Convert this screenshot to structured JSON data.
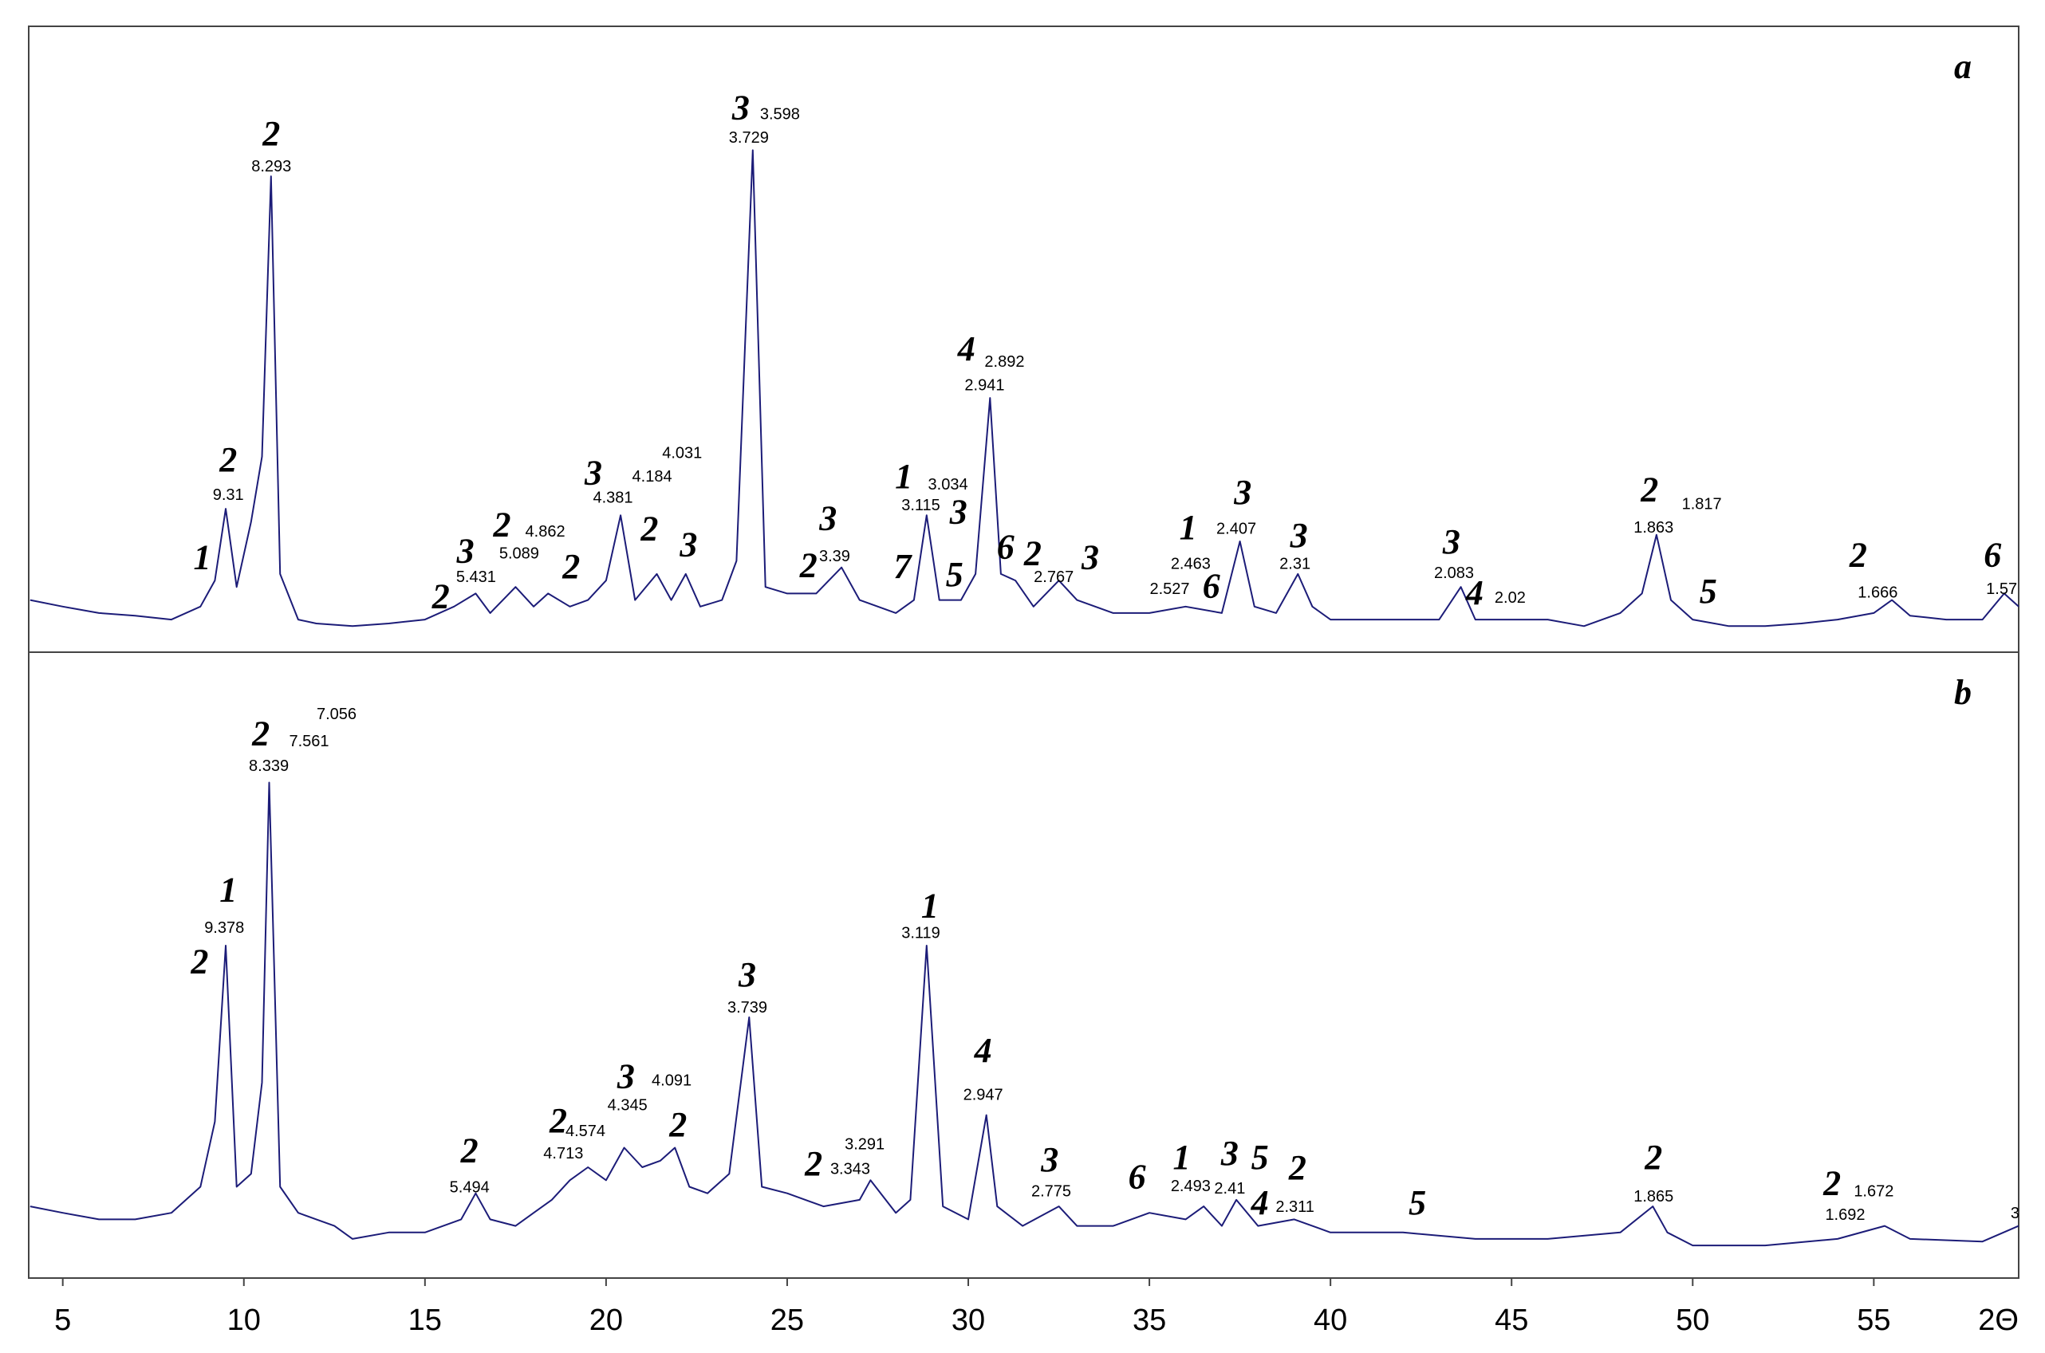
{
  "chart_data": [
    {
      "type": "line",
      "panel_label": "a",
      "color": "#1c1c78",
      "xlim": [
        4.06,
        59.0
      ],
      "ylim": [
        0,
        480
      ],
      "x": [
        4.1,
        5,
        6,
        7,
        8,
        8.8,
        9.2,
        9.5,
        9.8,
        10.2,
        10.5,
        10.75,
        11.0,
        11.5,
        12,
        13,
        14,
        15,
        15.8,
        16.4,
        16.8,
        17.5,
        18,
        18.4,
        19,
        19.5,
        20,
        20.4,
        20.8,
        21.4,
        21.8,
        22.2,
        22.6,
        23.2,
        23.6,
        24.05,
        24.4,
        25,
        25.8,
        26.5,
        27,
        28,
        28.5,
        28.85,
        29.2,
        29.8,
        30.2,
        30.6,
        30.9,
        31.3,
        31.8,
        32.5,
        33,
        34,
        35,
        36,
        37,
        37.5,
        37.9,
        38.5,
        39.1,
        39.5,
        40,
        42,
        43,
        43.6,
        44,
        45,
        46,
        47,
        48,
        48.6,
        49.0,
        49.4,
        50,
        51,
        52,
        53,
        54,
        55,
        55.5,
        56,
        57,
        58,
        58.6,
        59
      ],
      "values": [
        40,
        35,
        30,
        28,
        25,
        35,
        55,
        110,
        50,
        100,
        150,
        365,
        60,
        25,
        22,
        20,
        22,
        25,
        35,
        45,
        30,
        50,
        35,
        45,
        35,
        40,
        55,
        105,
        40,
        60,
        40,
        60,
        35,
        40,
        70,
        385,
        50,
        45,
        45,
        65,
        40,
        30,
        40,
        105,
        40,
        40,
        60,
        195,
        60,
        55,
        35,
        55,
        40,
        30,
        30,
        35,
        30,
        85,
        35,
        30,
        60,
        35,
        25,
        25,
        25,
        50,
        25,
        25,
        25,
        20,
        30,
        45,
        90,
        40,
        25,
        20,
        20,
        22,
        25,
        30,
        40,
        28,
        25,
        25,
        45,
        35
      ],
      "annotations": [
        {
          "text": "1",
          "style": "phase",
          "x": 8.85,
          "y": 70
        },
        {
          "text": "2",
          "style": "phase",
          "x": 9.57,
          "y": 145
        },
        {
          "text": "9.31",
          "style": "d",
          "x": 9.57,
          "y": 120
        },
        {
          "text": "2",
          "style": "phase",
          "x": 10.76,
          "y": 395
        },
        {
          "text": "8.293",
          "style": "d",
          "x": 10.76,
          "y": 372
        },
        {
          "text": "2",
          "style": "phase",
          "x": 15.44,
          "y": 40
        },
        {
          "text": "3",
          "style": "phase",
          "x": 16.12,
          "y": 75
        },
        {
          "text": "5.431",
          "style": "d",
          "x": 16.41,
          "y": 57
        },
        {
          "text": "2",
          "style": "phase",
          "x": 17.13,
          "y": 95
        },
        {
          "text": "5.089",
          "style": "d",
          "x": 17.6,
          "y": 75
        },
        {
          "text": "4.862",
          "style": "d",
          "x": 18.32,
          "y": 92
        },
        {
          "text": "2",
          "style": "phase",
          "x": 19.04,
          "y": 63
        },
        {
          "text": "3",
          "style": "phase",
          "x": 19.65,
          "y": 135
        },
        {
          "text": "4.381",
          "style": "d",
          "x": 20.19,
          "y": 118
        },
        {
          "text": "4.184",
          "style": "d",
          "x": 21.27,
          "y": 134
        },
        {
          "text": "4.031",
          "style": "d",
          "x": 22.1,
          "y": 152
        },
        {
          "text": "2",
          "style": "phase",
          "x": 21.2,
          "y": 92
        },
        {
          "text": "3",
          "style": "phase",
          "x": 22.28,
          "y": 80
        },
        {
          "text": "3",
          "style": "phase",
          "x": 23.72,
          "y": 415
        },
        {
          "text": "3.598",
          "style": "d",
          "x": 24.8,
          "y": 412
        },
        {
          "text": "3.729",
          "style": "d",
          "x": 23.94,
          "y": 394
        },
        {
          "text": "2",
          "style": "phase",
          "x": 25.59,
          "y": 64
        },
        {
          "text": "3.39",
          "style": "d",
          "x": 26.31,
          "y": 73
        },
        {
          "text": "3",
          "style": "phase",
          "x": 26.13,
          "y": 100
        },
        {
          "text": "1",
          "style": "phase",
          "x": 28.22,
          "y": 132
        },
        {
          "text": "3.034",
          "style": "d",
          "x": 29.44,
          "y": 128
        },
        {
          "text": "3.115",
          "style": "d",
          "x": 28.69,
          "y": 112
        },
        {
          "text": "3",
          "style": "phase",
          "x": 29.73,
          "y": 105
        },
        {
          "text": "7",
          "style": "phase",
          "x": 28.18,
          "y": 63
        },
        {
          "text": "5",
          "style": "phase",
          "x": 29.62,
          "y": 57
        },
        {
          "text": "4",
          "style": "phase",
          "x": 29.95,
          "y": 230
        },
        {
          "text": "2.892",
          "style": "d",
          "x": 31.0,
          "y": 222
        },
        {
          "text": "2.941",
          "style": "d",
          "x": 30.45,
          "y": 204
        },
        {
          "text": "6",
          "style": "phase",
          "x": 31.03,
          "y": 78
        },
        {
          "text": "2",
          "style": "phase",
          "x": 31.78,
          "y": 73
        },
        {
          "text": "2.767",
          "style": "d",
          "x": 32.36,
          "y": 57
        },
        {
          "text": "3",
          "style": "phase",
          "x": 33.37,
          "y": 70
        },
        {
          "text": "1",
          "style": "phase",
          "x": 36.07,
          "y": 93
        },
        {
          "text": "2.463",
          "style": "d",
          "x": 36.14,
          "y": 67
        },
        {
          "text": "2.527",
          "style": "d",
          "x": 35.56,
          "y": 48
        },
        {
          "text": "6",
          "style": "phase",
          "x": 36.71,
          "y": 48
        },
        {
          "text": "3",
          "style": "phase",
          "x": 37.58,
          "y": 120
        },
        {
          "text": "2.407",
          "style": "d",
          "x": 37.4,
          "y": 94
        },
        {
          "text": "3",
          "style": "phase",
          "x": 39.13,
          "y": 87
        },
        {
          "text": "2.31",
          "style": "d",
          "x": 39.02,
          "y": 67
        },
        {
          "text": "3",
          "style": "phase",
          "x": 43.34,
          "y": 82
        },
        {
          "text": "2.083",
          "style": "d",
          "x": 43.41,
          "y": 60
        },
        {
          "text": "4",
          "style": "phase",
          "x": 43.98,
          "y": 43
        },
        {
          "text": "2.02",
          "style": "d",
          "x": 44.96,
          "y": 41
        },
        {
          "text": "2",
          "style": "phase",
          "x": 48.81,
          "y": 122
        },
        {
          "text": "1.863",
          "style": "d",
          "x": 48.92,
          "y": 95
        },
        {
          "text": "1.817",
          "style": "d",
          "x": 50.25,
          "y": 113
        },
        {
          "text": "5",
          "style": "phase",
          "x": 50.43,
          "y": 44
        },
        {
          "text": "2",
          "style": "phase",
          "x": 54.57,
          "y": 72
        },
        {
          "text": "1.666",
          "style": "d",
          "x": 55.11,
          "y": 45
        },
        {
          "text": "6",
          "style": "phase",
          "x": 58.28,
          "y": 72
        },
        {
          "text": "1.57",
          "style": "d",
          "x": 58.53,
          "y": 48
        }
      ]
    },
    {
      "type": "line",
      "panel_label": "b",
      "color": "#1c1c78",
      "xlim": [
        4.06,
        59.0
      ],
      "ylim": [
        0,
        480
      ],
      "xticks": [
        5,
        10,
        15,
        20,
        25,
        30,
        35,
        40,
        45,
        50,
        55
      ],
      "xlabel": "2Θ",
      "x": [
        4.1,
        5,
        6,
        7,
        8,
        8.8,
        9.2,
        9.5,
        9.8,
        10.2,
        10.5,
        10.7,
        11.0,
        11.5,
        12,
        12.5,
        13,
        14,
        15,
        16,
        16.4,
        16.8,
        17.5,
        18,
        18.5,
        19,
        19.5,
        20,
        20.5,
        21,
        21.5,
        21.9,
        22.3,
        22.8,
        23.4,
        23.95,
        24.3,
        25,
        26,
        27,
        27.3,
        28,
        28.4,
        28.85,
        29.3,
        30,
        30.5,
        30.8,
        31.5,
        32.5,
        33,
        34,
        35,
        36,
        36.5,
        37,
        37.4,
        38,
        39,
        40,
        42,
        44,
        46,
        48,
        48.9,
        49.3,
        50,
        52,
        54,
        55.3,
        56,
        58,
        59
      ],
      "values": [
        55,
        50,
        45,
        45,
        50,
        70,
        120,
        255,
        70,
        80,
        150,
        380,
        70,
        50,
        45,
        40,
        30,
        35,
        35,
        45,
        65,
        45,
        40,
        50,
        60,
        75,
        85,
        75,
        100,
        85,
        90,
        100,
        70,
        65,
        80,
        200,
        70,
        65,
        55,
        60,
        75,
        50,
        60,
        255,
        55,
        45,
        125,
        55,
        40,
        55,
        40,
        40,
        50,
        45,
        55,
        40,
        60,
        40,
        45,
        35,
        35,
        30,
        30,
        35,
        55,
        35,
        25,
        25,
        30,
        40,
        30,
        28,
        40
      ],
      "annotations": [
        {
          "text": "2",
          "style": "phase",
          "x": 8.78,
          "y": 240
        },
        {
          "text": "1",
          "style": "phase",
          "x": 9.57,
          "y": 295
        },
        {
          "text": "9.378",
          "style": "d",
          "x": 9.46,
          "y": 268
        },
        {
          "text": "2",
          "style": "phase",
          "x": 10.47,
          "y": 415
        },
        {
          "text": "7.561",
          "style": "d",
          "x": 11.8,
          "y": 411
        },
        {
          "text": "7.056",
          "style": "d",
          "x": 12.56,
          "y": 432
        },
        {
          "text": "8.339",
          "style": "d",
          "x": 10.69,
          "y": 392
        },
        {
          "text": "2",
          "style": "phase",
          "x": 16.23,
          "y": 95
        },
        {
          "text": "5.494",
          "style": "d",
          "x": 16.23,
          "y": 69
        },
        {
          "text": "2",
          "style": "phase",
          "x": 18.68,
          "y": 118
        },
        {
          "text": "4.574",
          "style": "d",
          "x": 19.43,
          "y": 112
        },
        {
          "text": "4.713",
          "style": "d",
          "x": 18.82,
          "y": 95
        },
        {
          "text": "3",
          "style": "phase",
          "x": 20.55,
          "y": 152
        },
        {
          "text": "4.091",
          "style": "d",
          "x": 21.81,
          "y": 151
        },
        {
          "text": "4.345",
          "style": "d",
          "x": 20.59,
          "y": 132
        },
        {
          "text": "2",
          "style": "phase",
          "x": 21.99,
          "y": 115
        },
        {
          "text": "3",
          "style": "phase",
          "x": 23.9,
          "y": 230
        },
        {
          "text": "3.739",
          "style": "d",
          "x": 23.9,
          "y": 207
        },
        {
          "text": "2",
          "style": "phase",
          "x": 25.73,
          "y": 85
        },
        {
          "text": "3.343",
          "style": "d",
          "x": 26.74,
          "y": 83
        },
        {
          "text": "3.291",
          "style": "d",
          "x": 27.14,
          "y": 102
        },
        {
          "text": "1",
          "style": "phase",
          "x": 28.94,
          "y": 283
        },
        {
          "text": "3.119",
          "style": "d",
          "x": 28.69,
          "y": 264
        },
        {
          "text": "4",
          "style": "phase",
          "x": 30.41,
          "y": 172
        },
        {
          "text": "2.947",
          "style": "d",
          "x": 30.41,
          "y": 140
        },
        {
          "text": "3",
          "style": "phase",
          "x": 32.25,
          "y": 88
        },
        {
          "text": "2.775",
          "style": "d",
          "x": 32.29,
          "y": 66
        },
        {
          "text": "6",
          "style": "phase",
          "x": 34.66,
          "y": 75
        },
        {
          "text": "1",
          "style": "phase",
          "x": 35.89,
          "y": 90
        },
        {
          "text": "2.493",
          "style": "d",
          "x": 36.14,
          "y": 70
        },
        {
          "text": "3",
          "style": "phase",
          "x": 37.22,
          "y": 93
        },
        {
          "text": "2.41",
          "style": "d",
          "x": 37.22,
          "y": 68
        },
        {
          "text": "5",
          "style": "phase",
          "x": 38.05,
          "y": 90
        },
        {
          "text": "4",
          "style": "phase",
          "x": 38.05,
          "y": 55
        },
        {
          "text": "2.311",
          "style": "d",
          "x": 39.02,
          "y": 54
        },
        {
          "text": "2",
          "style": "phase",
          "x": 39.09,
          "y": 82
        },
        {
          "text": "5",
          "style": "phase",
          "x": 42.4,
          "y": 55
        },
        {
          "text": "2",
          "style": "phase",
          "x": 48.92,
          "y": 90
        },
        {
          "text": "1.865",
          "style": "d",
          "x": 48.92,
          "y": 62
        },
        {
          "text": "2",
          "style": "phase",
          "x": 53.85,
          "y": 70
        },
        {
          "text": "1.672",
          "style": "d",
          "x": 55.0,
          "y": 66
        },
        {
          "text": "1.692",
          "style": "d",
          "x": 54.21,
          "y": 48
        },
        {
          "text": "3",
          "style": "d",
          "x": 58.9,
          "y": 49
        }
      ]
    }
  ]
}
